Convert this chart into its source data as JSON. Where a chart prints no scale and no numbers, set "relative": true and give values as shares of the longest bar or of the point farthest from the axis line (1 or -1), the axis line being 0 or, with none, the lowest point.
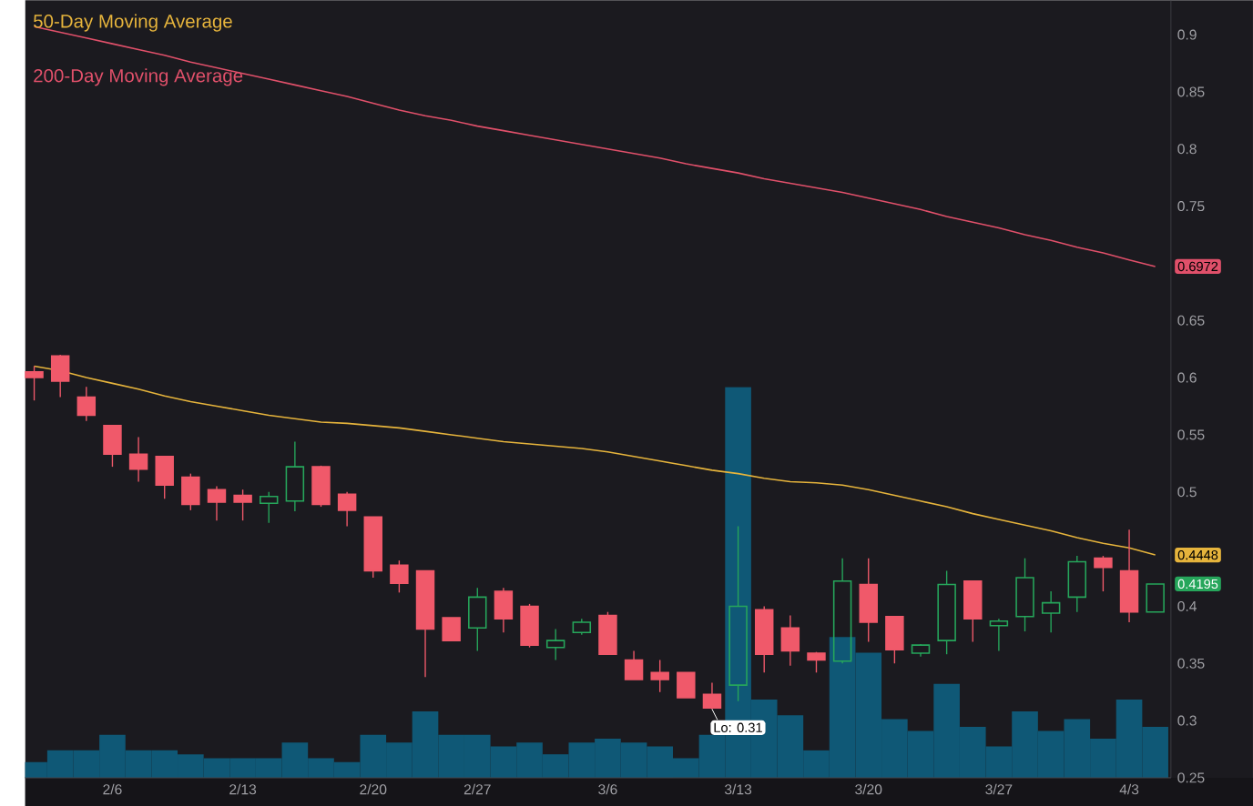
{
  "chart_data": [
    {
      "type": "candlestick",
      "categories": [
        null,
        null,
        null,
        "2/6",
        null,
        null,
        null,
        null,
        "2/13",
        null,
        null,
        null,
        null,
        "2/20",
        null,
        null,
        null,
        "2/27",
        null,
        null,
        null,
        null,
        "3/6",
        null,
        null,
        null,
        null,
        "3/13",
        null,
        null,
        null,
        null,
        "3/20",
        null,
        null,
        null,
        null,
        "3/27",
        null,
        null,
        null,
        null,
        "4/3",
        null
      ],
      "ohlc": [
        [
          0.605,
          0.61,
          0.58,
          0.6
        ],
        [
          0.619,
          0.62,
          0.583,
          0.597
        ],
        [
          0.583,
          0.592,
          0.562,
          0.567
        ],
        [
          0.558,
          0.558,
          0.522,
          0.533
        ],
        [
          0.533,
          0.548,
          0.509,
          0.52
        ],
        [
          0.531,
          0.531,
          0.494,
          0.506
        ],
        [
          0.513,
          0.516,
          0.484,
          0.489
        ],
        [
          0.502,
          0.505,
          0.475,
          0.491
        ],
        [
          0.497,
          0.502,
          0.475,
          0.491
        ],
        [
          0.49,
          0.5,
          0.473,
          0.496
        ],
        [
          0.492,
          0.544,
          0.483,
          0.522
        ],
        [
          0.522,
          0.523,
          0.487,
          0.489
        ],
        [
          0.498,
          0.5,
          0.47,
          0.484
        ],
        [
          0.478,
          0.478,
          0.425,
          0.431
        ],
        [
          0.436,
          0.44,
          0.412,
          0.42
        ],
        [
          0.431,
          0.431,
          0.338,
          0.38
        ],
        [
          0.39,
          0.39,
          0.37,
          0.37
        ],
        [
          0.381,
          0.416,
          0.361,
          0.408
        ],
        [
          0.413,
          0.416,
          0.377,
          0.389
        ],
        [
          0.4,
          0.402,
          0.364,
          0.366
        ],
        [
          0.364,
          0.38,
          0.353,
          0.37
        ],
        [
          0.377,
          0.389,
          0.375,
          0.386
        ],
        [
          0.392,
          0.395,
          0.358,
          0.358
        ],
        [
          0.353,
          0.361,
          0.336,
          0.336
        ],
        [
          0.342,
          0.353,
          0.325,
          0.336
        ],
        [
          0.342,
          0.342,
          0.32,
          0.32
        ],
        [
          0.323,
          0.333,
          0.31,
          0.311
        ],
        [
          0.331,
          0.47,
          0.317,
          0.4
        ],
        [
          0.397,
          0.4,
          0.342,
          0.358
        ],
        [
          0.381,
          0.392,
          0.348,
          0.361
        ],
        [
          0.359,
          0.36,
          0.342,
          0.353
        ],
        [
          0.352,
          0.442,
          0.35,
          0.422
        ],
        [
          0.419,
          0.442,
          0.369,
          0.386
        ],
        [
          0.391,
          0.391,
          0.35,
          0.362
        ],
        [
          0.359,
          0.367,
          0.356,
          0.366
        ],
        [
          0.37,
          0.431,
          0.358,
          0.419
        ],
        [
          0.422,
          0.422,
          0.369,
          0.389
        ],
        [
          0.383,
          0.389,
          0.361,
          0.387
        ],
        [
          0.391,
          0.442,
          0.378,
          0.425
        ],
        [
          0.394,
          0.413,
          0.377,
          0.403
        ],
        [
          0.408,
          0.444,
          0.395,
          0.439
        ],
        [
          0.442,
          0.444,
          0.413,
          0.434
        ],
        [
          0.431,
          0.467,
          0.386,
          0.395
        ],
        [
          0.395,
          0.4195,
          0.395,
          0.4195
        ]
      ],
      "series": [
        {
          "name": "50-Day Moving Average",
          "type": "line",
          "color": "#e6b43c",
          "values": [
            0.61,
            0.606,
            0.6,
            0.595,
            0.59,
            0.584,
            0.579,
            0.575,
            0.571,
            0.567,
            0.564,
            0.561,
            0.56,
            0.558,
            0.556,
            0.553,
            0.55,
            0.547,
            0.544,
            0.542,
            0.54,
            0.538,
            0.535,
            0.531,
            0.527,
            0.523,
            0.519,
            0.516,
            0.512,
            0.509,
            0.508,
            0.506,
            0.502,
            0.497,
            0.492,
            0.487,
            0.481,
            0.476,
            0.471,
            0.466,
            0.46,
            0.455,
            0.451,
            0.4448
          ]
        },
        {
          "name": "200-Day Moving Average",
          "type": "line",
          "color": "#e0506a",
          "values": [
            0.907,
            0.902,
            0.897,
            0.892,
            0.887,
            0.882,
            0.876,
            0.871,
            0.866,
            0.861,
            0.856,
            0.851,
            0.846,
            0.84,
            0.834,
            0.829,
            0.825,
            0.82,
            0.816,
            0.812,
            0.808,
            0.804,
            0.8,
            0.796,
            0.792,
            0.787,
            0.783,
            0.779,
            0.774,
            0.77,
            0.766,
            0.762,
            0.757,
            0.752,
            0.747,
            0.741,
            0.736,
            0.731,
            0.725,
            0.72,
            0.714,
            0.709,
            0.703,
            0.6972
          ]
        }
      ],
      "annotations": [
        {
          "text": "Lo: 0.31",
          "y": 0.31
        },
        {
          "text": "0.6972",
          "y": 0.6972
        },
        {
          "text": "0.4448",
          "y": 0.4448
        },
        {
          "text": "0.4195",
          "y": 0.4195
        }
      ],
      "ylim": [
        0.25,
        0.93
      ],
      "yticks": [
        0.25,
        0.3,
        0.35,
        0.4,
        0.5,
        0.55,
        0.6,
        0.65,
        0.75,
        0.8,
        0.85,
        0.9
      ],
      "legend": "top left"
    },
    {
      "type": "bar",
      "relative": true,
      "color": "#0f5876",
      "categories": [
        null,
        null,
        null,
        null,
        null,
        null,
        null,
        null,
        null,
        null,
        null,
        null,
        null,
        null,
        null,
        null,
        null,
        null,
        null,
        null,
        null,
        null,
        null,
        null,
        null,
        null,
        null,
        null,
        null,
        null,
        null,
        null,
        null,
        null,
        null,
        null,
        null,
        null,
        null,
        null,
        null,
        null,
        null,
        null
      ],
      "values": [
        0.04,
        0.07,
        0.07,
        0.11,
        0.07,
        0.07,
        0.06,
        0.05,
        0.05,
        0.05,
        0.09,
        0.05,
        0.04,
        0.11,
        0.09,
        0.17,
        0.11,
        0.11,
        0.08,
        0.09,
        0.06,
        0.09,
        0.1,
        0.09,
        0.08,
        0.05,
        0.11,
        1,
        0.2,
        0.16,
        0.07,
        0.36,
        0.32,
        0.15,
        0.12,
        0.24,
        0.13,
        0.08,
        0.17,
        0.12,
        0.15,
        0.1,
        0.2,
        0.13
      ]
    }
  ]
}
